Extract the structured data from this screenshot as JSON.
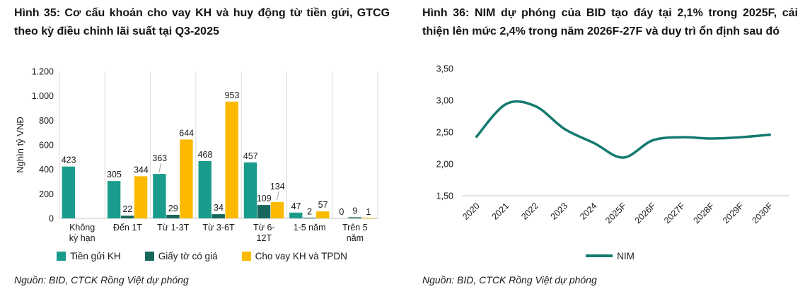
{
  "chart_data": [
    {
      "type": "bar",
      "title": "Hình 35: Cơ cấu khoản cho vay KH và huy động từ tiền gửi, GTCG theo kỳ điều chỉnh lãi suất tại Q3-2025",
      "source_note": "Nguồn: BID, CTCK Rồng Việt dự phóng",
      "ylabel": "Nghìn tỷ VNĐ",
      "ylim": [
        0,
        1200
      ],
      "ytick_step": 200,
      "ytick_labels": [
        "0",
        "200",
        "400",
        "600",
        "800",
        "1.000",
        "1.200"
      ],
      "categories": [
        "Không\nkỳ hạn",
        "Đến 1T",
        "Từ 1-3T",
        "Từ 3-6T",
        "Từ 6-\n12T",
        "1-5 năm",
        "Trên 5\nnăm"
      ],
      "series": [
        {
          "name": "Tiền gửi KH",
          "color": "#1A9C8C",
          "values": [
            423,
            305,
            363,
            468,
            457,
            47,
            0
          ]
        },
        {
          "name": "Giấy tờ có giá",
          "color": "#15685B",
          "values": [
            null,
            22,
            29,
            34,
            109,
            2,
            9
          ]
        },
        {
          "name": "Cho vay KH và TPDN",
          "color": "#FBBA00",
          "values": [
            null,
            344,
            644,
            953,
            134,
            57,
            1
          ]
        }
      ],
      "grid": "vertical-category-lines",
      "grid_color": "#DADADA",
      "axis_color": "#C6C6C6",
      "legend_position": "bottom"
    },
    {
      "type": "line",
      "title": "Hình 36: NIM dự phóng của BID tạo đáy tại 2,1% trong 2025F, cải thiện lên mức 2,4% trong năm 2026F-27F và duy trì ổn định sau đó",
      "source_note": "Nguồn: BID, CTCK Rồng Việt dự phóng",
      "x": [
        "2020",
        "2021",
        "2022",
        "2023",
        "2024",
        "2025F",
        "2026F",
        "2027F",
        "2028F",
        "2029F",
        "2030F"
      ],
      "series": [
        {
          "name": "NIM",
          "color": "#137A6E",
          "values": [
            2.43,
            2.94,
            2.91,
            2.55,
            2.33,
            2.1,
            2.37,
            2.42,
            2.4,
            2.42,
            2.46
          ]
        }
      ],
      "ylim": [
        1.5,
        3.5
      ],
      "ytick_step": 0.5,
      "ytick_labels": [
        "1,50",
        "2,00",
        "2,50",
        "3,00",
        "3,50"
      ],
      "grid": "off",
      "axis_color": "#D9D9D9",
      "legend_position": "bottom",
      "smooth": true
    }
  ]
}
